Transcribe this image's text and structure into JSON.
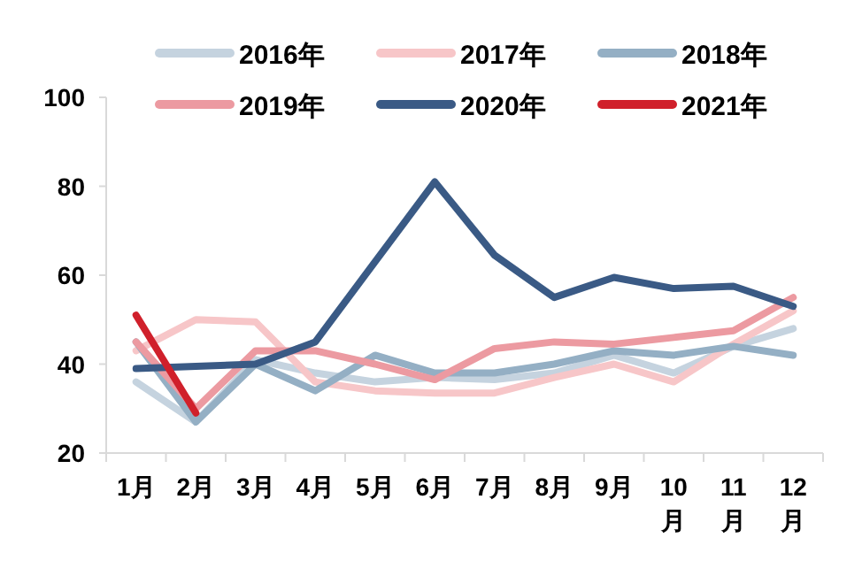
{
  "chart_data": {
    "type": "line",
    "categories": [
      "1月",
      "2月",
      "3月",
      "4月",
      "5月",
      "6月",
      "7月",
      "8月",
      "9月",
      "10月",
      "11月",
      "12月"
    ],
    "ylim": [
      20,
      100
    ],
    "yticks": [
      20,
      40,
      60,
      80,
      100
    ],
    "grid": false,
    "legend": "top",
    "marker": "none",
    "line_style": "solid",
    "series": [
      {
        "name": "2016年",
        "color": "#c5d3df",
        "values": [
          36,
          27,
          41,
          38,
          36,
          37,
          36.5,
          38,
          42,
          38,
          44,
          48
        ]
      },
      {
        "name": "2017年",
        "color": "#f7c6c8",
        "values": [
          43,
          50,
          49.5,
          36,
          34,
          33.5,
          33.5,
          37,
          40,
          36,
          44.5,
          52
        ]
      },
      {
        "name": "2018年",
        "color": "#94afc4",
        "values": [
          45,
          27,
          40,
          34,
          42,
          38,
          38,
          40,
          43,
          42,
          44,
          42
        ]
      },
      {
        "name": "2019年",
        "color": "#ec9aa1",
        "values": [
          45,
          30,
          43,
          43,
          40,
          36.5,
          43.5,
          45,
          44.5,
          46,
          47.5,
          55
        ]
      },
      {
        "name": "2020年",
        "color": "#3a5a85",
        "values": [
          39,
          39.5,
          40,
          45,
          63,
          81,
          64.5,
          55,
          59.5,
          57,
          57.5,
          53
        ]
      },
      {
        "name": "2021年",
        "color": "#d0202b",
        "values": [
          51,
          29,
          null,
          null,
          null,
          null,
          null,
          null,
          null,
          null,
          null,
          null
        ]
      }
    ]
  }
}
